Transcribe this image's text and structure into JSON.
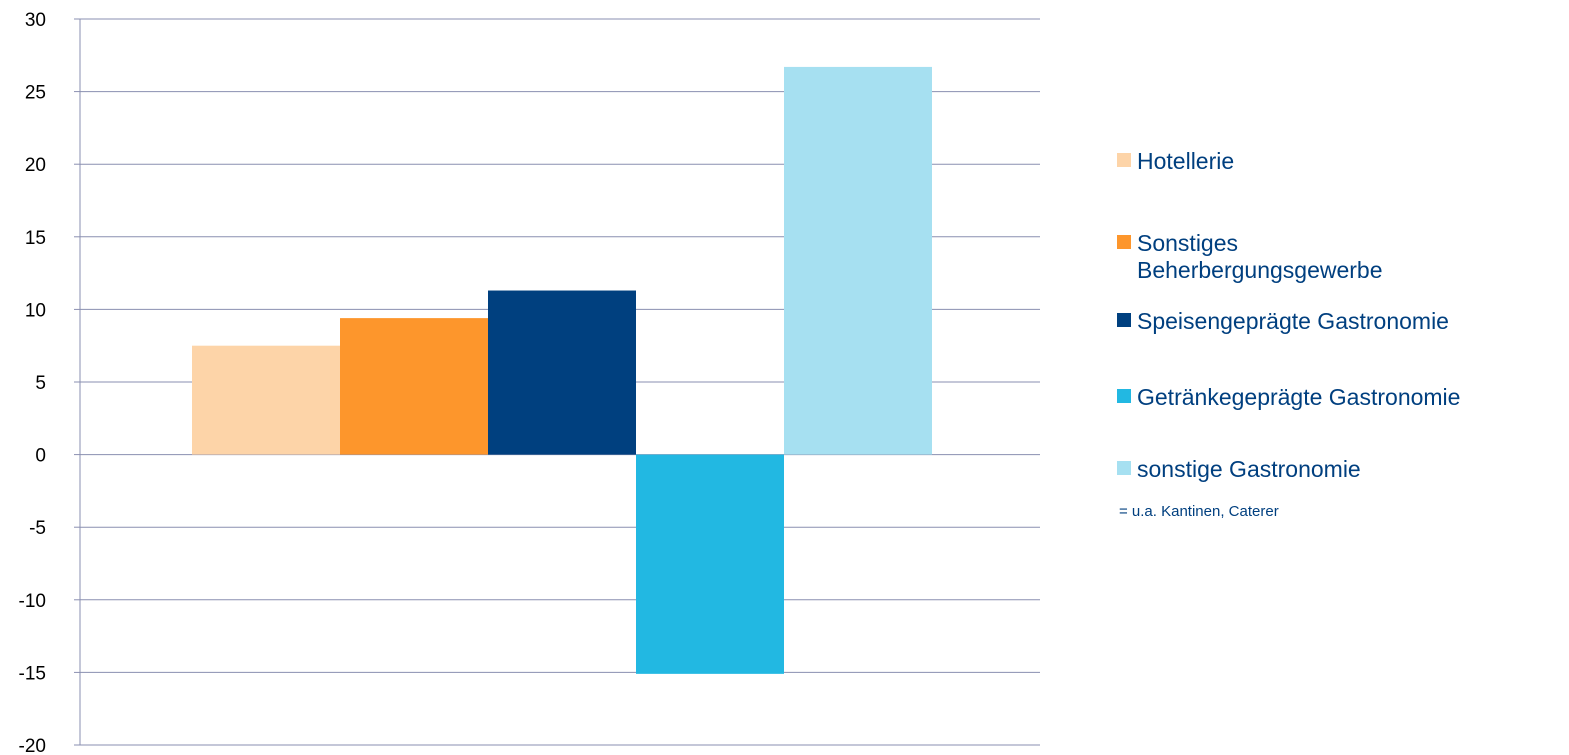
{
  "chart_data": {
    "type": "bar",
    "ylim": [
      -20,
      30
    ],
    "yticks": [
      30,
      25,
      20,
      15,
      10,
      5,
      0,
      -5,
      -10,
      -15,
      -20
    ],
    "grid": true,
    "legend_position": "right",
    "series": [
      {
        "name": "Hotellerie",
        "value": 7.5,
        "color": "#fdd4a8"
      },
      {
        "name": "Sonstiges Beherbergungsgewerbe",
        "value": 9.4,
        "color": "#fd962c"
      },
      {
        "name": "Speisengeprägte Gastronomie",
        "value": 11.3,
        "color": "#00407f"
      },
      {
        "name": "Getränkegeprägte Gastronomie",
        "value": -15.1,
        "color": "#22b8e2"
      },
      {
        "name": "sonstige Gastronomie",
        "value": 26.7,
        "color": "#a6e0f1"
      }
    ],
    "legend_note": "= u.a. Kantinen, Caterer",
    "colors": {
      "grid": "#8a8fb0",
      "axis": "#8a8fb0",
      "legend_text": "#003f7f"
    }
  }
}
